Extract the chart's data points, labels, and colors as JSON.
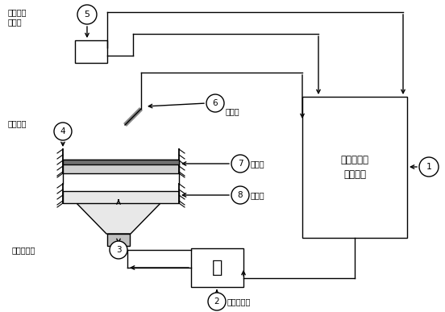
{
  "background_color": "#ffffff",
  "text_labels": {
    "laser_sensor": "激光位移\n传感器",
    "test_part": "被测部件",
    "excite_speaker": "激励扬声器",
    "power_amp": "功率放大器",
    "microphone": "传声器",
    "workbench": "工作台",
    "excite_table": "激励台",
    "data_processor": "数据采集分\n析处理器"
  },
  "colors": {
    "black": "#000000",
    "white": "#ffffff",
    "gray_light": "#e0e0e0",
    "gray_dark": "#888888"
  }
}
